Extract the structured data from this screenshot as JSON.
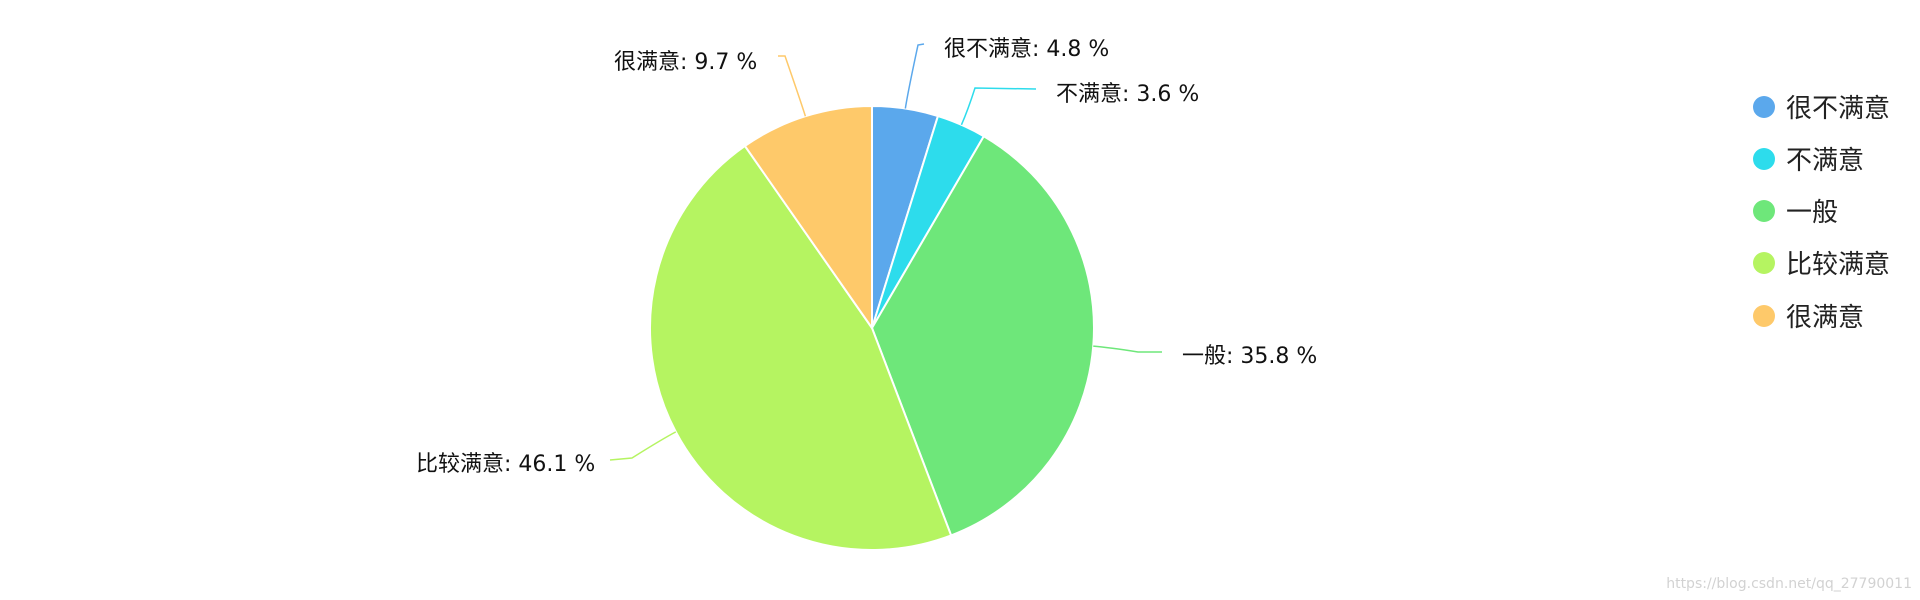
{
  "chart_data": {
    "type": "pie",
    "categories": [
      "很不满意",
      "不满意",
      "一般",
      "比较满意",
      "很满意"
    ],
    "values": [
      4.8,
      3.6,
      35.8,
      46.1,
      9.7
    ],
    "unit": "%",
    "colors": [
      "#5ba8ec",
      "#2ddcec",
      "#6ee77a",
      "#b5f461",
      "#fec96a"
    ],
    "legend": {
      "position": "right",
      "items": [
        "很不满意",
        "不满意",
        "一般",
        "比较满意",
        "很满意"
      ]
    },
    "labels": [
      "很不满意: 4.8 %",
      "不满意: 3.6 %",
      "一般: 35.8 %",
      "比较满意: 46.1 %",
      "很满意: 9.7 %"
    ]
  },
  "watermark": "https://blog.csdn.net/qq_27790011"
}
